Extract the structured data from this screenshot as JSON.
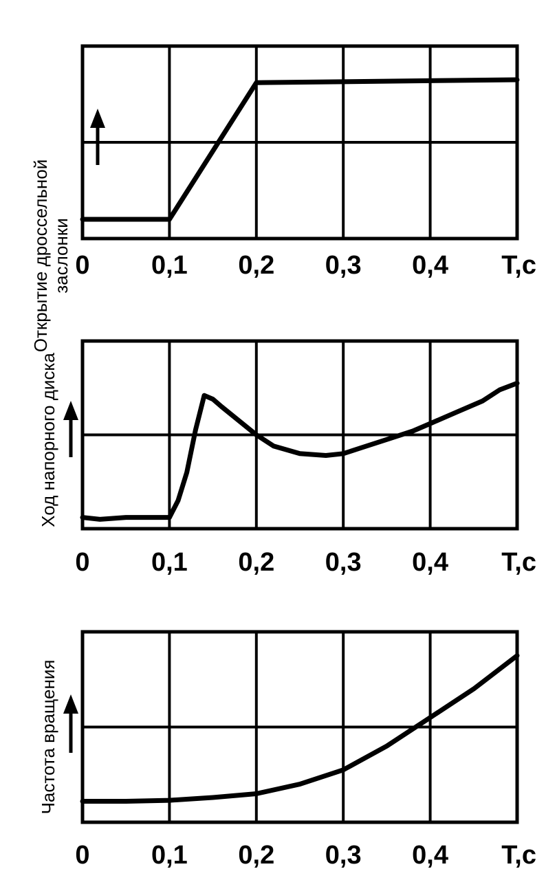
{
  "chart_data": [
    {
      "type": "line",
      "ylabel": "Открытие дроссельной заслонки",
      "xlabel": "T,с",
      "x_ticks": [
        "0",
        "0,1",
        "0,2",
        "0,3",
        "0,4"
      ],
      "xlim": [
        0,
        0.5
      ],
      "ylim": [
        0,
        2
      ],
      "grid": true,
      "series": [
        {
          "x": [
            0,
            0.1,
            0.2,
            0.5
          ],
          "y": [
            0.2,
            0.2,
            1.62,
            1.65
          ]
        }
      ]
    },
    {
      "type": "line",
      "ylabel": "Ход напорного диска",
      "xlabel": "T,с",
      "x_ticks": [
        "0",
        "0,1",
        "0,2",
        "0,3",
        "0,4"
      ],
      "xlim": [
        0,
        0.5
      ],
      "ylim": [
        0,
        2
      ],
      "grid": true,
      "series": [
        {
          "x": [
            0,
            0.02,
            0.05,
            0.08,
            0.1,
            0.11,
            0.12,
            0.13,
            0.14,
            0.15,
            0.16,
            0.18,
            0.2,
            0.22,
            0.25,
            0.28,
            0.3,
            0.32,
            0.35,
            0.38,
            0.4,
            0.43,
            0.46,
            0.48,
            0.5
          ],
          "y": [
            0.12,
            0.1,
            0.12,
            0.12,
            0.12,
            0.3,
            0.6,
            1.05,
            1.42,
            1.38,
            1.3,
            1.15,
            1.0,
            0.88,
            0.8,
            0.78,
            0.8,
            0.86,
            0.95,
            1.04,
            1.12,
            1.24,
            1.36,
            1.48,
            1.55
          ]
        }
      ]
    },
    {
      "type": "line",
      "ylabel": "Частота вращения",
      "xlabel": "T,с",
      "x_ticks": [
        "0",
        "0,1",
        "0,2",
        "0,3",
        "0,4"
      ],
      "xlim": [
        0,
        0.5
      ],
      "ylim": [
        0,
        2
      ],
      "grid": true,
      "series": [
        {
          "x": [
            0,
            0.05,
            0.1,
            0.15,
            0.2,
            0.25,
            0.3,
            0.35,
            0.4,
            0.45,
            0.5
          ],
          "y": [
            0.22,
            0.22,
            0.23,
            0.26,
            0.3,
            0.4,
            0.55,
            0.8,
            1.1,
            1.4,
            1.75
          ]
        }
      ]
    }
  ]
}
